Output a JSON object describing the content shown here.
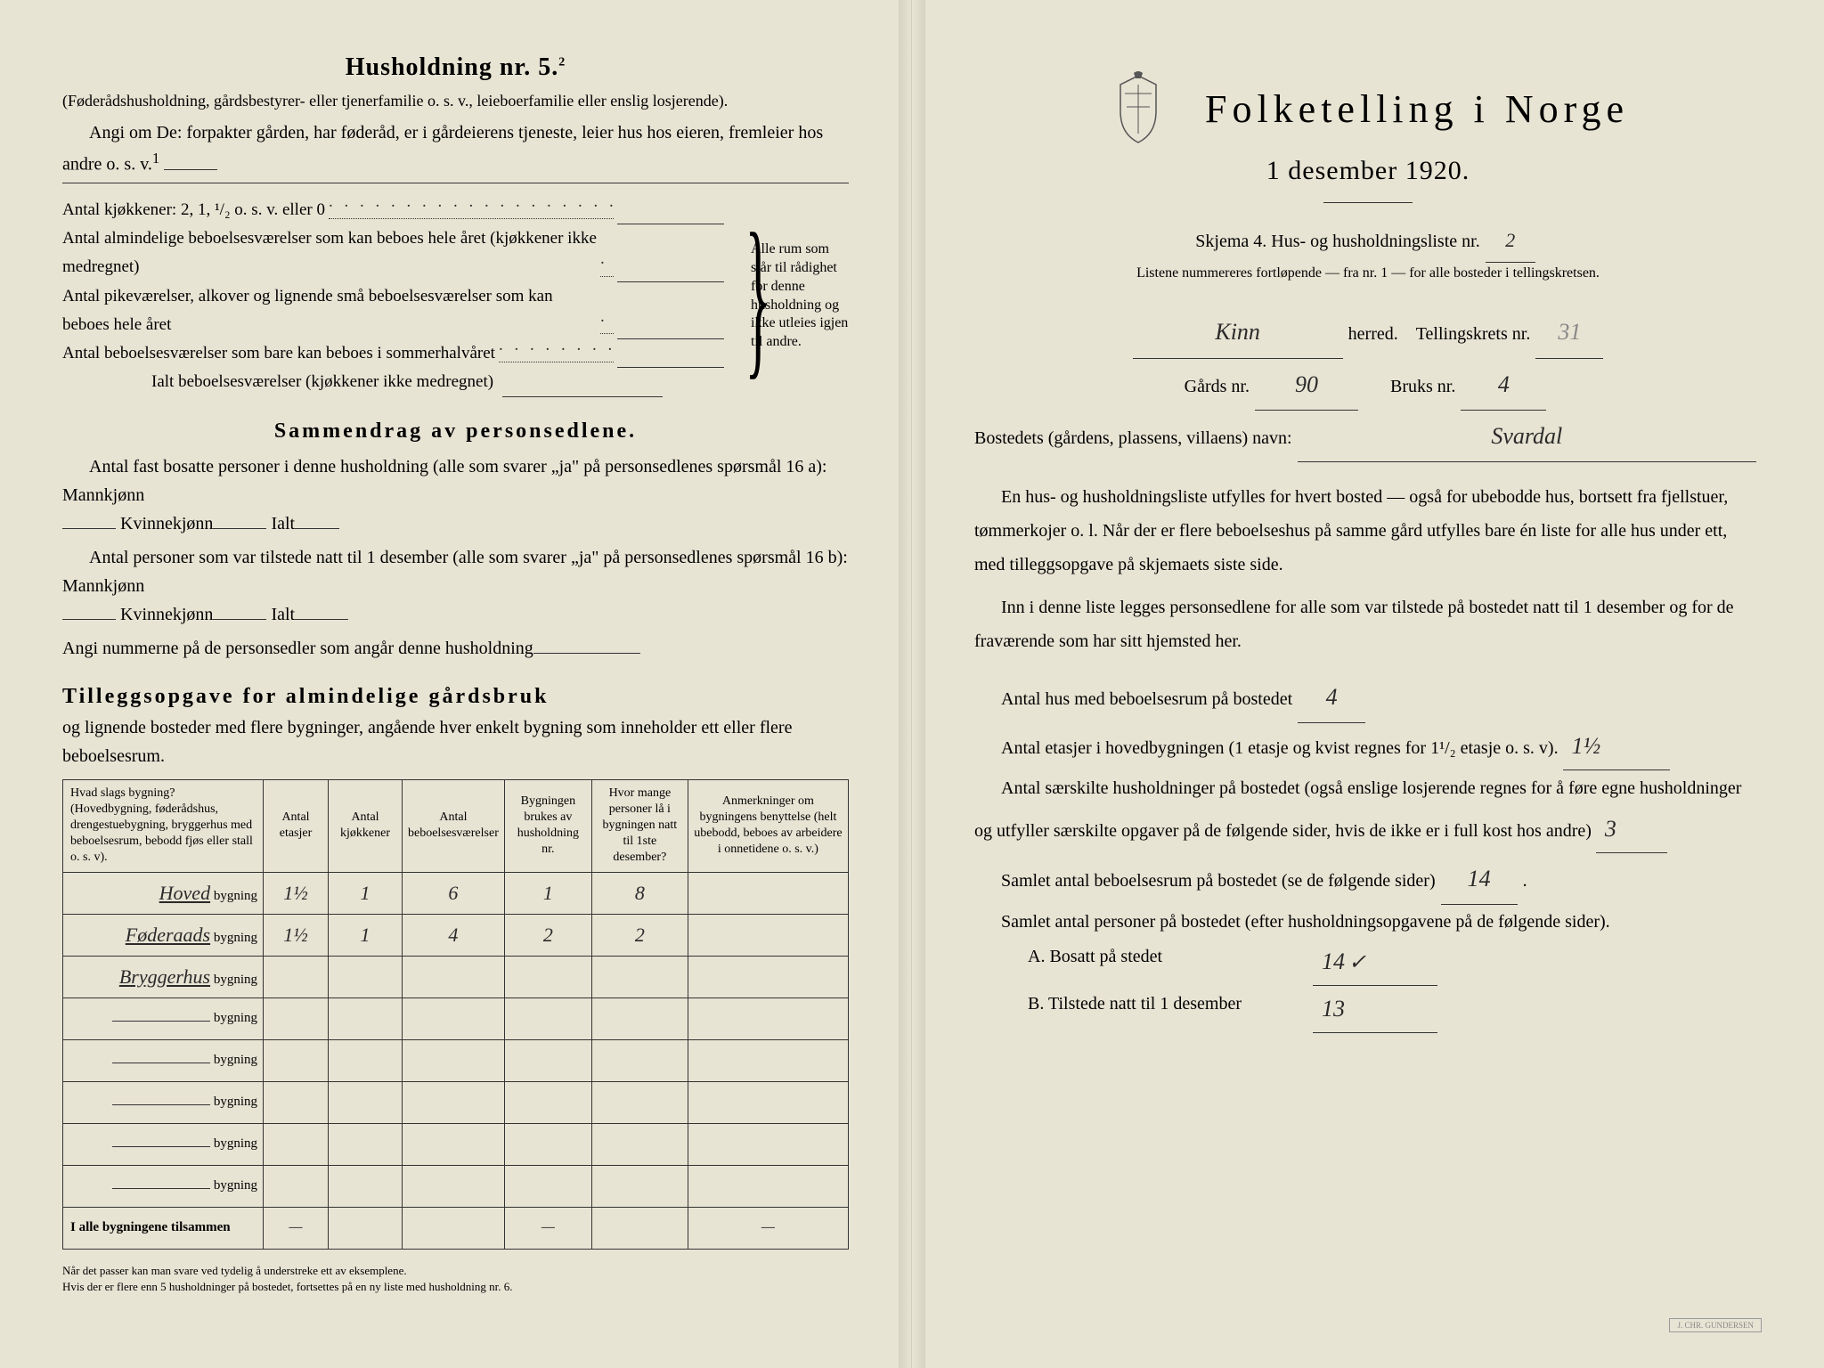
{
  "left": {
    "heading": "Husholdning nr. 5.",
    "heading_sup": "2",
    "intro1": "(Føderådshusholdning, gårdsbestyrer- eller tjenerfamilie o. s. v., leieboerfamilie eller enslig losjerende).",
    "intro2": "Angi om De: forpakter gården, har føderåd, er i gårdeierens tjeneste, leier hus hos eieren, fremleier hos andre o. s. v.",
    "intro2_sup": "1",
    "rows": [
      "Antal kjøkkener: 2, 1, ¹/₂ o. s. v. eller 0",
      "Antal almindelige beboelsesværelser som kan beboes hele året (kjøkkener ikke medregnet)",
      "Antal pikeværelser, alkover og lignende små beboelsesværelser som kan beboes hele året",
      "Antal beboelsesværelser som bare kan beboes i sommerhalvåret",
      "Ialt beboelsesværelser (kjøkkener ikke medregnet)"
    ],
    "bracket_note": "Alle rum som står til rådighet for denne husholdning og ikke utleies igjen til andre.",
    "summary_heading": "Sammendrag av personsedlene.",
    "summary1_a": "Antal fast bosatte personer i denne husholdning (alle som svarer „ja\" på personsedlenes spørsmål 16 a): Mannkjønn",
    "summary1_b": "Kvinnekjønn",
    "summary1_c": "Ialt",
    "summary2_a": "Antal personer som var tilstede natt til 1 desember (alle som svarer „ja\" på personsedlenes spørsmål 16 b): Mannkjønn",
    "summary2_b": "Kvinnekjønn",
    "summary2_c": "Ialt",
    "summary3": "Angi nummerne på de personsedler som angår denne husholdning",
    "tillegg_heading": "Tilleggsopgave for almindelige gårdsbruk",
    "tillegg_sub": "og lignende bosteder med flere bygninger, angående hver enkelt bygning som inneholder ett eller flere beboelsesrum.",
    "table": {
      "headers": [
        "Hvad slags bygning?\n(Hovedbygning, føderådshus, drengestuebygning, bryggerhus med beboelsesrum, bebodd fjøs eller stall o. s. v).",
        "Antal etasjer",
        "Antal kjøkkener",
        "Antal beboelsesværelser",
        "Bygningen brukes av husholdning nr.",
        "Hvor mange personer lå i bygningen natt til 1ste desember?",
        "Anmerkninger om bygningens benyttelse (helt ubebodd, beboes av arbeidere i onnetidene o. s. v.)"
      ],
      "rows": [
        {
          "label": "Hoved",
          "suffix": "bygning",
          "vals": [
            "1½",
            "1",
            "6",
            "1",
            "8",
            ""
          ]
        },
        {
          "label": "Føderaads",
          "suffix": "bygning",
          "vals": [
            "1½",
            "1",
            "4",
            "2",
            "2",
            ""
          ]
        },
        {
          "label": "Bryggerhus",
          "suffix": "bygning",
          "vals": [
            "",
            "",
            "",
            "",
            "",
            ""
          ]
        },
        {
          "label": "",
          "suffix": "bygning",
          "vals": [
            "",
            "",
            "",
            "",
            "",
            ""
          ]
        },
        {
          "label": "",
          "suffix": "bygning",
          "vals": [
            "",
            "",
            "",
            "",
            "",
            ""
          ]
        },
        {
          "label": "",
          "suffix": "bygning",
          "vals": [
            "",
            "",
            "",
            "",
            "",
            ""
          ]
        },
        {
          "label": "",
          "suffix": "bygning",
          "vals": [
            "",
            "",
            "",
            "",
            "",
            ""
          ]
        },
        {
          "label": "",
          "suffix": "bygning",
          "vals": [
            "",
            "",
            "",
            "",
            "",
            ""
          ]
        }
      ],
      "total_label": "I alle bygningene tilsammen",
      "total_vals": [
        "—",
        "",
        "",
        "—",
        "",
        "—"
      ]
    },
    "footnote1": "Når det passer kan man svare ved tydelig å understreke ett av eksemplene.",
    "footnote2": "Hvis der er flere enn 5 husholdninger på bostedet, fortsettes på en ny liste med husholdning nr. 6."
  },
  "right": {
    "title": "Folketelling i Norge",
    "subtitle": "1 desember 1920.",
    "skjema_line_a": "Skjema 4.  Hus- og husholdningsliste nr.",
    "skjema_nr": "2",
    "liste_note": "Listene nummereres fortløpende — fra nr. 1 — for alle bosteder i tellingskretsen.",
    "herred_val": "Kinn",
    "herred_lbl": "herred.",
    "tellingskrets_lbl": "Tellingskrets nr.",
    "tellingskrets_val": "31",
    "gards_lbl": "Gårds nr.",
    "gards_val": "90",
    "bruks_lbl": "Bruks nr.",
    "bruks_val": "4",
    "bosted_lbl": "Bostedets (gårdens, plassens, villaens) navn:",
    "bosted_val": "Svardal",
    "para1": "En hus- og husholdningsliste utfylles for hvert bosted — også for ubebodde hus, bortsett fra fjellstuer, tømmerkojer o. l. Når der er flere beboelseshus på samme gård utfylles bare én liste for alle hus under ett, med tilleggsopgave på skjemaets siste side.",
    "para2": "Inn i denne liste legges personsedlene for alle som var tilstede på bostedet natt til 1 desember og for de fraværende som har sitt hjemsted her.",
    "q1_lbl": "Antal hus med beboelsesrum på bostedet",
    "q1_val": "4",
    "q2_lbl_a": "Antal etasjer i hovedbygningen (1 etasje og kvist regnes for 1¹/₂ etasje o. s. v).",
    "q2_val": "1½",
    "q3_lbl": "Antal særskilte husholdninger på bostedet (også enslige losjerende regnes for å føre egne husholdninger og utfyller særskilte opgaver på de følgende sider, hvis de ikke er i full kost hos andre)",
    "q3_val": "3",
    "q4_lbl": "Samlet antal beboelsesrum på bostedet (se de følgende sider)",
    "q4_val": "14",
    "q5_lbl": "Samlet antal personer på bostedet (efter husholdningsopgavene på de følgende sider).",
    "qa_lbl": "A.  Bosatt på stedet",
    "qa_val": "14",
    "qa_check": "✓",
    "qb_lbl": "B.  Tilstede natt til 1 desember",
    "qb_val": "13",
    "printer": "J. CHR. GUNDERSEN"
  },
  "colors": {
    "paper": "#e8e4d4",
    "ink": "#2a2a2a",
    "hand": "#2a2a2a"
  }
}
